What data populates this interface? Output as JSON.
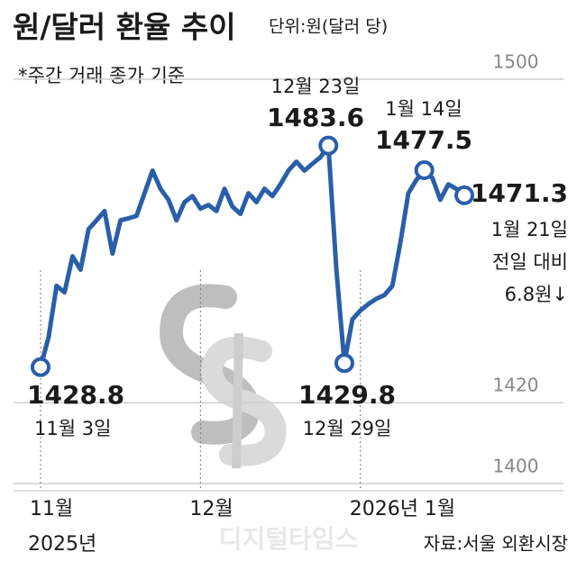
{
  "chart_data": {
    "type": "line",
    "title": "원/달러 환율 추이",
    "unit": "단위:원(달러 당)",
    "subtitle": "*주간 거래 종가 기준",
    "source": "자료:서울 외환시장",
    "watermark": "디지털타임스",
    "ylim": [
      1400,
      1500
    ],
    "yticks": [
      1400,
      1420,
      1500
    ],
    "xticks": [
      {
        "value": 0,
        "label": "11월"
      },
      {
        "value": 20,
        "label": "12월"
      },
      {
        "value": 40,
        "label": "2026년 1월"
      }
    ],
    "year_label": "2025년",
    "categories": [
      null,
      null,
      null,
      null,
      null,
      null,
      null,
      null,
      null,
      null,
      null,
      null,
      null,
      null,
      null,
      null,
      null,
      null,
      null,
      null,
      null,
      null,
      null,
      null,
      null,
      null,
      null,
      null,
      null,
      null,
      null,
      null,
      null,
      null,
      null,
      null,
      null,
      null,
      null,
      null,
      null,
      null,
      null,
      null,
      null,
      null,
      null,
      null,
      null,
      null,
      null,
      null,
      null,
      null
    ],
    "series": [
      {
        "name": "원/달러 환율",
        "color": "#2a5ea8",
        "values": [
          1428.8,
          1436.2,
          1448.9,
          1447.3,
          1456.2,
          1452.9,
          1462.9,
          1465.1,
          1467.4,
          1456.9,
          1465.1,
          1465.6,
          1466.2,
          1471.8,
          1477.4,
          1472.9,
          1470.2,
          1465.1,
          1469.6,
          1471.1,
          1468.0,
          1468.9,
          1467.4,
          1472.9,
          1468.5,
          1466.7,
          1471.8,
          1469.6,
          1472.9,
          1471.1,
          1474.0,
          1477.4,
          1479.6,
          1477.4,
          1479.1,
          1480.7,
          1483.6,
          1452.9,
          1429.8,
          1440.6,
          1442.8,
          1444.4,
          1445.7,
          1446.6,
          1448.9,
          1459.5,
          1471.8,
          1475.1,
          1477.5,
          1475.6,
          1470.2,
          1474.0,
          1472.9,
          1471.3
        ]
      }
    ],
    "annotations": [
      {
        "label": "11월 3일"
      },
      {
        "label": "12월 23일"
      },
      {
        "label": "12월 29일"
      },
      {
        "label": "1월 14일"
      },
      {
        "label": "1월 21일"
      }
    ],
    "change": {
      "label": "전일 대비",
      "value": 6.8,
      "value_label": "6.8원↓"
    }
  }
}
